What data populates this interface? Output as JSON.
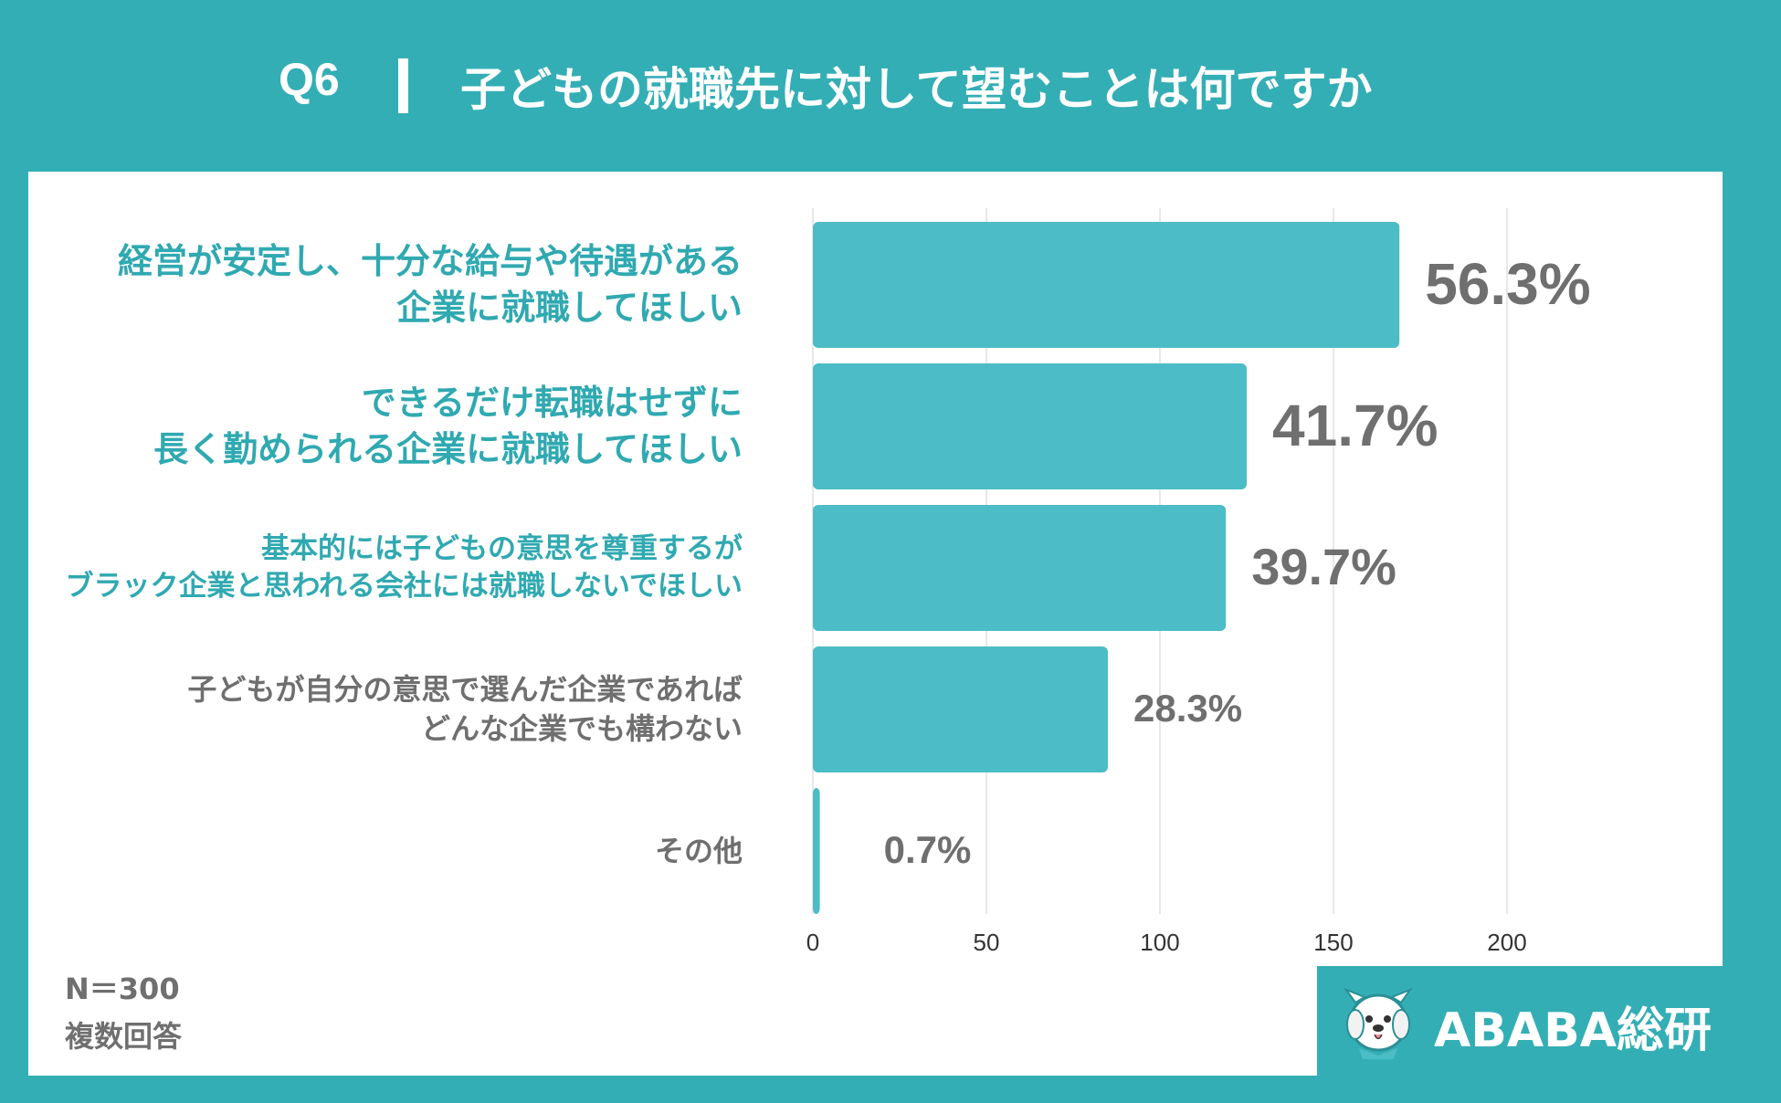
{
  "header": {
    "question_number": "Q6",
    "title": "子どもの就職先に対して望むことは何ですか"
  },
  "chart_data": {
    "type": "bar",
    "orientation": "horizontal",
    "categories": [
      "経営が安定し、十分な給与や待遇がある\n企業に就職してほしい",
      "できるだけ転職はせずに\n長く勤められる企業に就職してほしい",
      "基本的には子どもの意思を尊重するが\nブラック企業と思われる会社には就職しないでほしい",
      "子どもが自分の意思で選んだ企業であれば\nどんな企業でも構わない",
      "その他"
    ],
    "values": [
      169,
      125,
      119,
      85,
      2
    ],
    "value_labels": [
      "56.3%",
      "41.7%",
      "39.7%",
      "28.3%",
      "0.7%"
    ],
    "xlim": [
      0,
      200
    ],
    "x_ticks": [
      "0",
      "50",
      "100",
      "150",
      "200"
    ],
    "grid": true,
    "bar_color": "#4cbcc6",
    "highlight_label_color": "#30a9b1",
    "normal_label_color": "#6f6f6f"
  },
  "notes": {
    "sample": "N＝300",
    "answer_type": "複数回答"
  },
  "brand": {
    "name": "ABABA総研",
    "icon": "dog-mascot-icon"
  },
  "colors": {
    "background": "#34aeb5",
    "panel": "#ffffff"
  }
}
